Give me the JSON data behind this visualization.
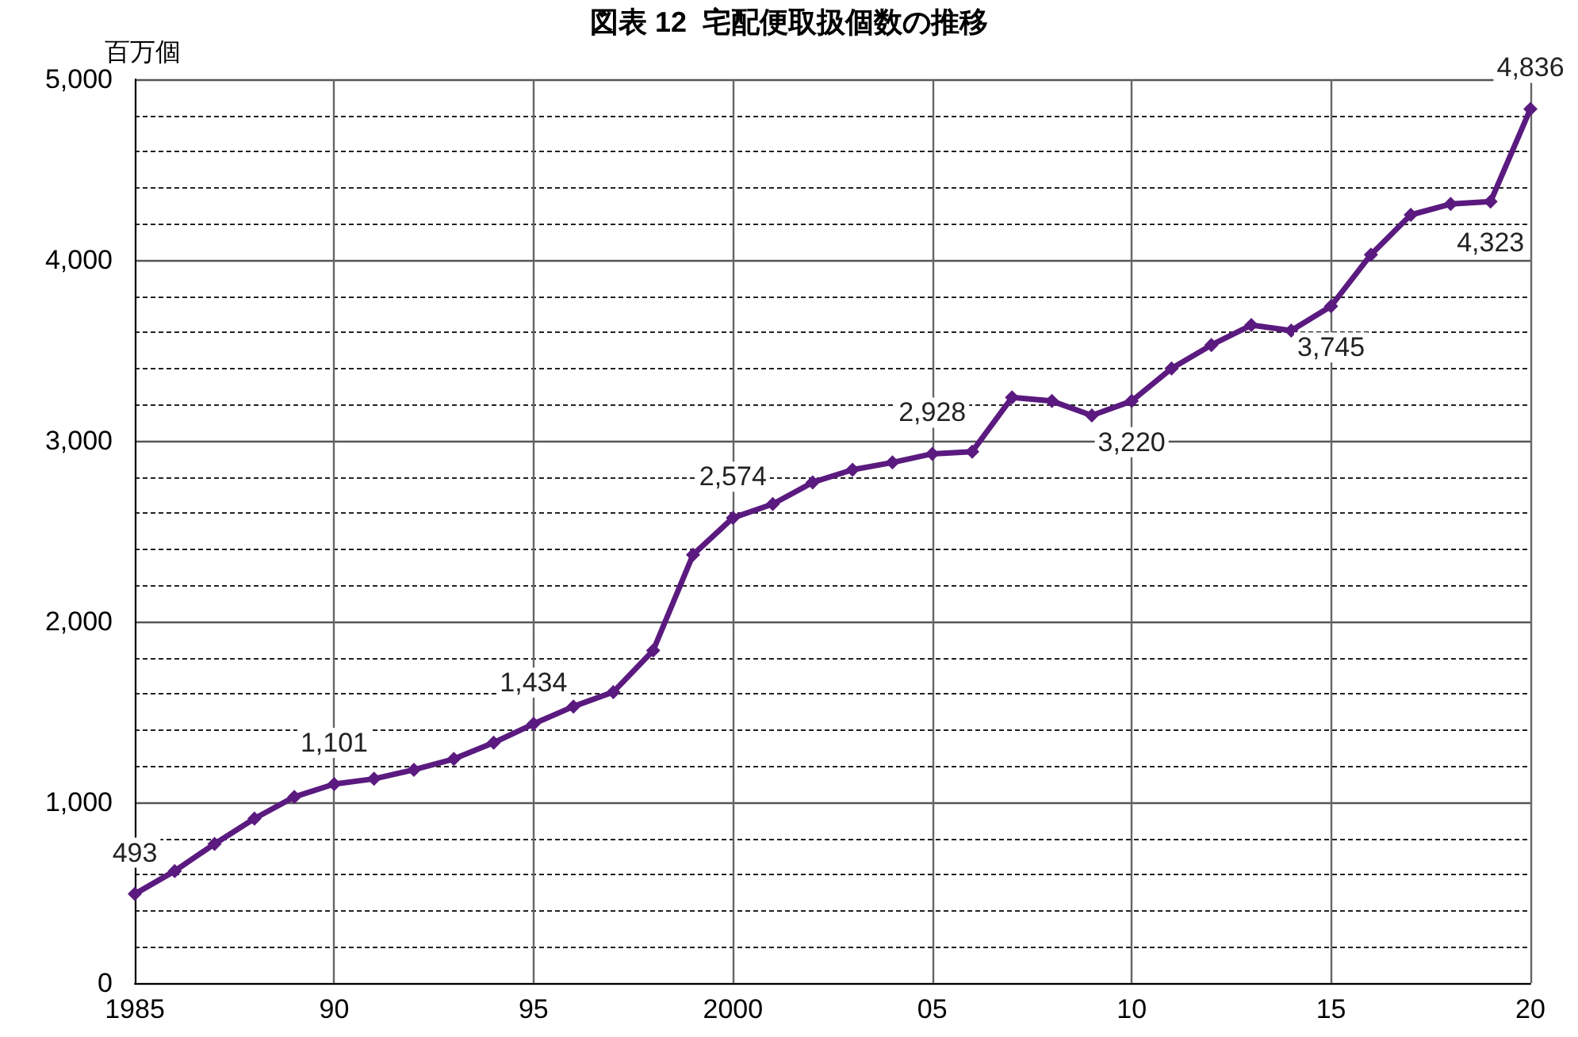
{
  "chart_data": {
    "type": "line",
    "title": "図表 12  宅配便取扱個数の推移",
    "ylabel": "百万個",
    "x": [
      1985,
      1986,
      1987,
      1988,
      1989,
      1990,
      1991,
      1992,
      1993,
      1994,
      1995,
      1996,
      1997,
      1998,
      1999,
      2000,
      2001,
      2002,
      2003,
      2004,
      2005,
      2006,
      2007,
      2008,
      2009,
      2010,
      2011,
      2012,
      2013,
      2014,
      2015,
      2016,
      2017,
      2018,
      2019,
      2020
    ],
    "series": [
      {
        "color": "#5b1a7f",
        "values": [
          493,
          620,
          770,
          910,
          1030,
          1101,
          1130,
          1180,
          1240,
          1330,
          1434,
          1530,
          1610,
          1840,
          2370,
          2574,
          2650,
          2770,
          2840,
          2880,
          2928,
          2940,
          3240,
          3220,
          3140,
          3220,
          3400,
          3530,
          3640,
          3610,
          3745,
          4030,
          4250,
          4310,
          4323,
          4836
        ],
        "value_labels": [
          "493",
          null,
          null,
          null,
          null,
          "1,101",
          null,
          null,
          null,
          null,
          "1,434",
          null,
          null,
          null,
          null,
          "2,574",
          null,
          null,
          null,
          null,
          "2,928",
          null,
          null,
          null,
          null,
          "3,220",
          null,
          null,
          null,
          null,
          "3,745",
          null,
          null,
          null,
          "4,323",
          "4,836"
        ]
      }
    ],
    "xlim": [
      1985,
      2020
    ],
    "xticks": [
      1985,
      {
        "value": 1990,
        "label": "90"
      },
      {
        "value": 1995,
        "label": "95"
      },
      2000,
      {
        "value": 2005,
        "label": "05"
      },
      {
        "value": 2010,
        "label": "10"
      },
      {
        "value": 2015,
        "label": "15"
      },
      {
        "value": 2020,
        "label": "20"
      }
    ],
    "ylim": [
      0,
      5000
    ],
    "yticks": [
      0,
      {
        "value": 1000,
        "label": "1,000"
      },
      {
        "value": 2000,
        "label": "2,000"
      },
      {
        "value": 3000,
        "label": "3,000"
      },
      {
        "value": 4000,
        "label": "4,000"
      },
      {
        "value": 5000,
        "label": "5,000"
      }
    ],
    "grid": true,
    "marker": "diamond",
    "line_style": "solid"
  }
}
